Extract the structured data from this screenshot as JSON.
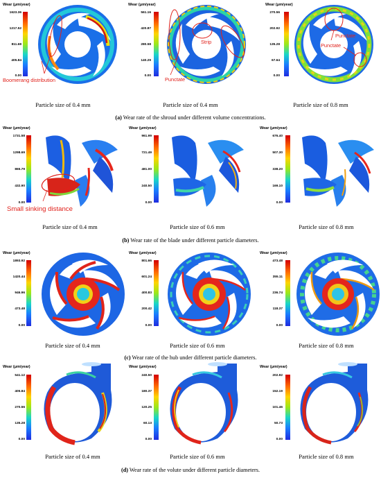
{
  "legend_title": "Wear (μm/year)",
  "rows": [
    {
      "id": "shroud",
      "caption_letter": "(a)",
      "caption_text": "Wear rate of the shroud under different volume concentrations.",
      "panels": [
        {
          "label": "Particle size of 0.4 mm",
          "ticks": [
            "1623.36",
            "1217.52",
            "811.68",
            "405.84",
            "0.00"
          ]
        },
        {
          "label": "Particle size of 0.4 mm",
          "ticks": [
            "561.16",
            "420.87",
            "280.58",
            "140.29",
            "0.00"
          ]
        },
        {
          "label": "Particle size of 0.8 mm",
          "ticks": [
            "270.56",
            "202.92",
            "135.28",
            "67.64",
            "0.00"
          ]
        }
      ],
      "annotations": [
        "Boomerang distribution",
        "Strip",
        "Punctate",
        "Punctate"
      ]
    },
    {
      "id": "blade",
      "caption_letter": "(b)",
      "caption_text": "Wear rate of the blade under different particle diameters.",
      "panels": [
        {
          "label": "Particle size of 0.4 mm",
          "ticks": [
            "1731.58",
            "1298.69",
            "865.79",
            "432.90",
            "0.00"
          ]
        },
        {
          "label": "Particle size of 0.6 mm",
          "ticks": [
            "961.99",
            "721.49",
            "481.00",
            "240.50",
            "0.00"
          ]
        },
        {
          "label": "Particle size of 0.8 mm",
          "ticks": [
            "676.40",
            "507.30",
            "338.20",
            "169.10",
            "0.00"
          ]
        }
      ],
      "annotations": [
        "Small sinking distance"
      ]
    },
    {
      "id": "hub",
      "caption_letter": "(c)",
      "caption_text": "Wear rate of the hub under different particle diameters.",
      "panels": [
        {
          "label": "Particle size of 0.4 mm",
          "ticks": [
            "1893.92",
            "1420.44",
            "946.96",
            "473.48",
            "0.00"
          ]
        },
        {
          "label": "Particle size of 0.6 mm",
          "ticks": [
            "801.66",
            "601.24",
            "400.83",
            "200.42",
            "0.00"
          ]
        },
        {
          "label": "Particle size of 0.8 mm",
          "ticks": [
            "473.48",
            "355.11",
            "236.74",
            "118.37",
            "0.00"
          ]
        }
      ],
      "annotations": []
    },
    {
      "id": "volute",
      "caption_letter": "(d)",
      "caption_text": "Wear rate of the volute under different particle diameters.",
      "panels": [
        {
          "label": "Particle size of 0.4 mm",
          "ticks": [
            "541.12",
            "405.84",
            "270.56",
            "135.28",
            "0.00"
          ]
        },
        {
          "label": "Particle size of 0.6 mm",
          "ticks": [
            "240.50",
            "180.37",
            "120.25",
            "60.13",
            "0.00"
          ]
        },
        {
          "label": "Particle size of 0.8 mm",
          "ticks": [
            "202.92",
            "152.19",
            "101.46",
            "50.73",
            "0.00"
          ]
        }
      ],
      "annotations": []
    }
  ]
}
